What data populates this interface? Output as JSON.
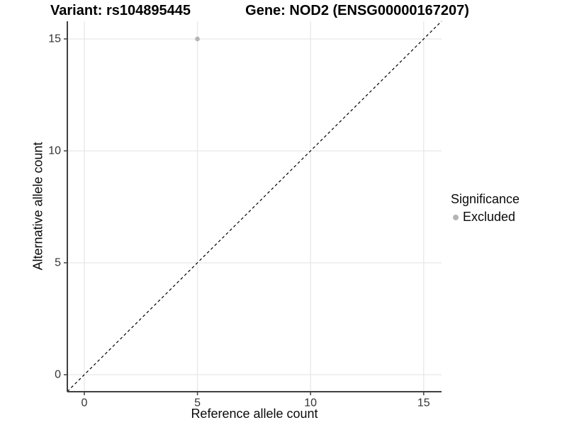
{
  "titles": {
    "variant": "Variant: rs104895445",
    "gene": "Gene: NOD2 (ENSG00000167207)"
  },
  "legend": {
    "title": "Significance",
    "items": [
      {
        "label": "Excluded",
        "color": "#b4b4b4"
      }
    ]
  },
  "chart_data": {
    "type": "scatter",
    "title": "Variant: rs104895445   Gene: NOD2 (ENSG00000167207)",
    "xlabel": "Reference allele count",
    "ylabel": "Alternative allele count",
    "xticks": [
      0,
      5,
      10,
      15
    ],
    "yticks": [
      0,
      5,
      10,
      15
    ],
    "xlim": [
      -0.75,
      15.79
    ],
    "ylim": [
      -0.76,
      15.79
    ],
    "grid": true,
    "legend_position": "right",
    "series": [
      {
        "name": "Excluded",
        "color": "#b4b4b4",
        "points": [
          {
            "x": 5,
            "y": 15
          }
        ]
      }
    ],
    "reference_line": {
      "kind": "identity y=x",
      "style": "dashed",
      "color": "#000000"
    }
  },
  "colors": {
    "background": "#ffffff",
    "grid": "#e7e7e7",
    "axis": "#404040",
    "tick_label": "#333333"
  }
}
